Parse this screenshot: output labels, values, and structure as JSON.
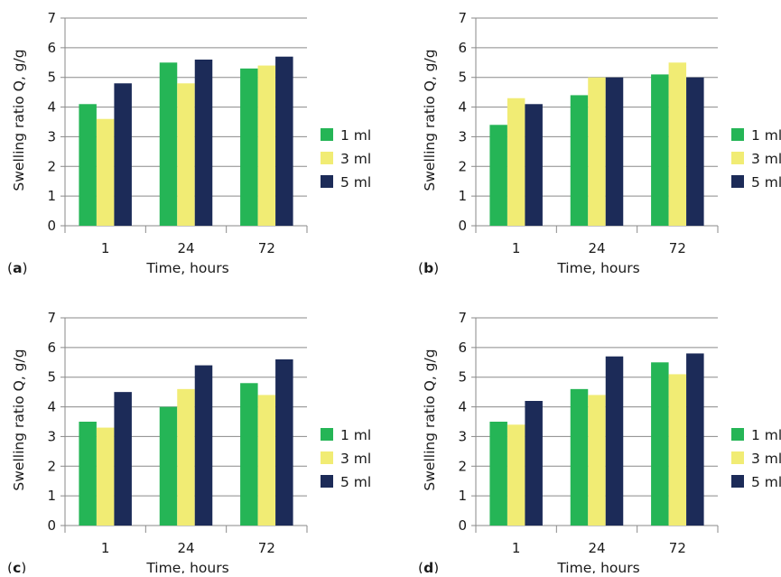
{
  "colors": {
    "s1": "#25b556",
    "s2": "#f1ec74",
    "s3": "#1c2b58",
    "axis": "#8a8a8a",
    "text": "#1a1a1a"
  },
  "chart_data": [
    {
      "type": "bar",
      "panel_label": "a",
      "categories": [
        "1",
        "24",
        "72"
      ],
      "series": [
        {
          "name": "1 ml",
          "values": [
            4.1,
            5.5,
            5.3
          ]
        },
        {
          "name": "3 ml",
          "values": [
            3.6,
            4.8,
            5.4
          ]
        },
        {
          "name": "5 ml",
          "values": [
            4.8,
            5.6,
            5.7
          ]
        }
      ],
      "xlabel": "Time, hours",
      "ylabel": "Swelling ratio Q, g/g",
      "ylim": [
        0,
        7
      ],
      "yticks": [
        "0",
        "1",
        "2",
        "3",
        "4",
        "5",
        "6",
        "7"
      ],
      "grid": true,
      "legend": "right"
    },
    {
      "type": "bar",
      "panel_label": "b",
      "categories": [
        "1",
        "24",
        "72"
      ],
      "series": [
        {
          "name": "1 ml",
          "values": [
            3.4,
            4.4,
            5.1
          ]
        },
        {
          "name": "3 ml",
          "values": [
            4.3,
            5.0,
            5.5
          ]
        },
        {
          "name": "5 ml",
          "values": [
            4.1,
            5.0,
            5.0
          ]
        }
      ],
      "xlabel": "Time, hours",
      "ylabel": "Swelling ratio Q, g/g",
      "ylim": [
        0,
        7
      ],
      "yticks": [
        "0",
        "1",
        "2",
        "3",
        "4",
        "5",
        "6",
        "7"
      ],
      "grid": true,
      "legend": "right"
    },
    {
      "type": "bar",
      "panel_label": "c",
      "categories": [
        "1",
        "24",
        "72"
      ],
      "series": [
        {
          "name": "1 ml",
          "values": [
            3.5,
            4.0,
            4.8
          ]
        },
        {
          "name": "3 ml",
          "values": [
            3.3,
            4.6,
            4.4
          ]
        },
        {
          "name": "5 ml",
          "values": [
            4.5,
            5.4,
            5.6
          ]
        }
      ],
      "xlabel": "Time, hours",
      "ylabel": "Swelling ratio Q, g/g",
      "ylim": [
        0,
        7
      ],
      "yticks": [
        "0",
        "1",
        "2",
        "3",
        "4",
        "5",
        "6",
        "7"
      ],
      "grid": true,
      "legend": "right"
    },
    {
      "type": "bar",
      "panel_label": "d",
      "categories": [
        "1",
        "24",
        "72"
      ],
      "series": [
        {
          "name": "1 ml",
          "values": [
            3.5,
            4.6,
            5.5
          ]
        },
        {
          "name": "3 ml",
          "values": [
            3.4,
            4.4,
            5.1
          ]
        },
        {
          "name": "5 ml",
          "values": [
            4.2,
            5.7,
            5.8
          ]
        }
      ],
      "xlabel": "Time, hours",
      "ylabel": "Swelling ratio Q, g/g",
      "ylim": [
        0,
        7
      ],
      "yticks": [
        "0",
        "1",
        "2",
        "3",
        "4",
        "5",
        "6",
        "7"
      ],
      "grid": true,
      "legend": "right"
    }
  ]
}
